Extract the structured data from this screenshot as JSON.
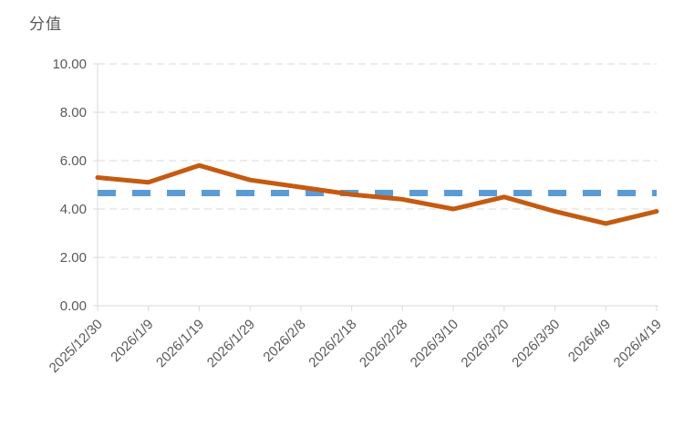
{
  "chart_data": {
    "type": "line",
    "title": "分值",
    "categories": [
      "2025/12/30",
      "2026/1/9",
      "2026/1/19",
      "2026/1/29",
      "2026/2/8",
      "2026/2/18",
      "2026/2/28",
      "2026/3/10",
      "2026/3/20",
      "2026/3/30",
      "2026/4/9",
      "2026/4/19"
    ],
    "series": [
      {
        "values": [
          5.3,
          5.1,
          5.8,
          5.2,
          4.9,
          4.6,
          4.4,
          4.0,
          4.5,
          3.9,
          3.4,
          3.9
        ],
        "color": "#C55A11",
        "style": "solid"
      }
    ],
    "reference_line": {
      "value": 4.66,
      "color": "#5B9BD5",
      "style": "long-dash"
    },
    "ylim": [
      0,
      10
    ],
    "ytick_step": 2,
    "ytick_labels": [
      "10.00",
      "8.00",
      "6.00",
      "4.00",
      "2.00",
      "0.00"
    ],
    "xlabel": "",
    "ylabel": "分值",
    "x_label_rotation_deg": 45,
    "grid": "horizontal-dashed",
    "legend": "none",
    "colors": {
      "gridline": "#D9D9D9",
      "axis": "#D0CECE",
      "text": "#595959",
      "background": "#FFFFFF"
    }
  }
}
